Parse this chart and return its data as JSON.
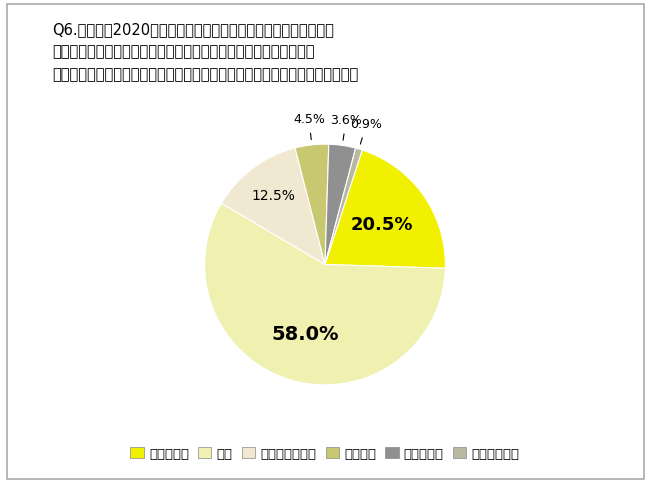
{
  "title_line1": "Q6.今年度（2020年度）は、新型コロナウイルスの影響を受け、",
  "title_line2": "　　保育園の休園や感染症対策など様々な課題を抱えながら保育が",
  "title_line3": "　　行われました。あなたの今年度の保育園に対する評価を教えてください。",
  "labels": [
    "とても良い",
    "良い",
    "あまり良くない",
    "良くない",
    "わからない",
    "答えたくない"
  ],
  "values": [
    20.5,
    58.0,
    12.5,
    4.5,
    3.6,
    0.9
  ],
  "colors": [
    "#f0f000",
    "#f0f0b0",
    "#f0e8d0",
    "#c8c870",
    "#909090",
    "#b8b8a0"
  ],
  "background_color": "#ffffff",
  "startangle": 72,
  "title_fontsize": 10.5,
  "legend_fontsize": 9.5
}
